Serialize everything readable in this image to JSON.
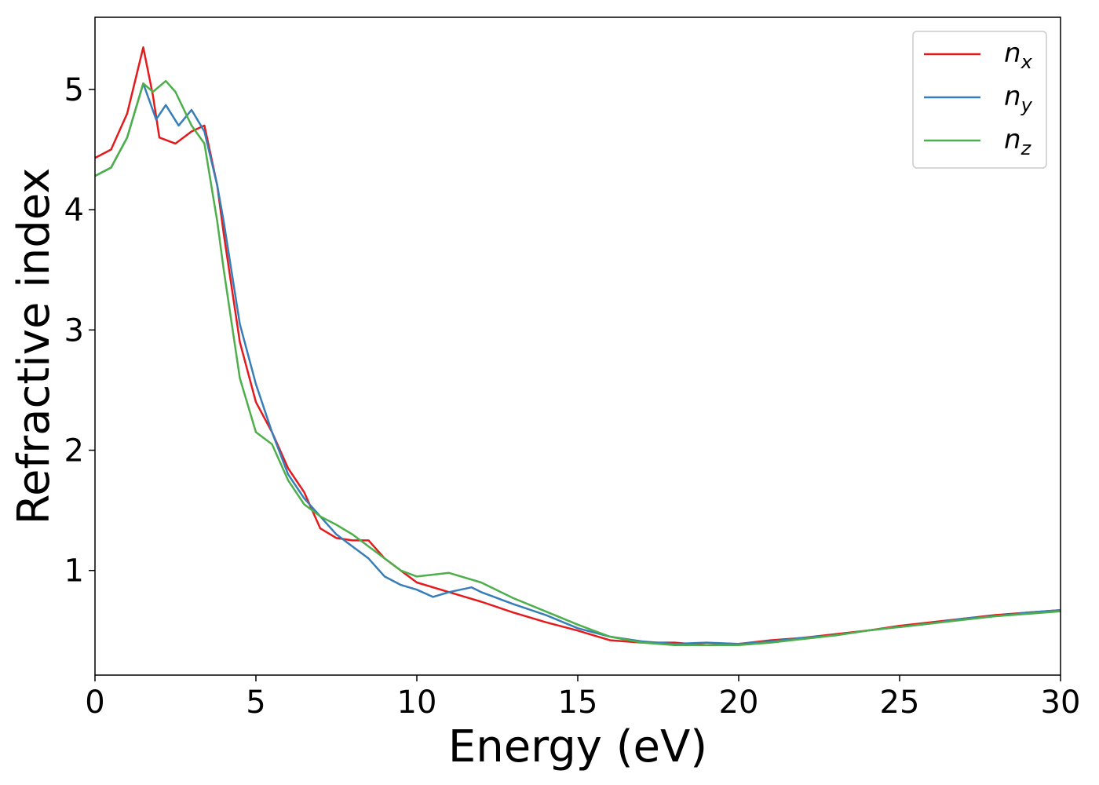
{
  "chart_data": {
    "type": "line",
    "xlabel": "Energy (eV)",
    "ylabel": "Refractive index",
    "xlim": [
      0,
      30
    ],
    "ylim": [
      0.13,
      5.6
    ],
    "xticks": [
      0,
      5,
      10,
      15,
      20,
      25,
      30
    ],
    "yticks": [
      1,
      2,
      3,
      4,
      5
    ],
    "grid": false,
    "legend": "upper right",
    "series": [
      {
        "name": [
          "n",
          "x"
        ],
        "color": "#e41a1c",
        "x": [
          0,
          0.5,
          1.0,
          1.5,
          1.8,
          2.0,
          2.5,
          3.0,
          3.4,
          3.8,
          4.0,
          4.5,
          5.0,
          5.5,
          6.0,
          6.5,
          7.0,
          7.5,
          8.0,
          8.5,
          9.0,
          9.5,
          10,
          11,
          12,
          13,
          14,
          15,
          16,
          17,
          18,
          19,
          20,
          21,
          22,
          23,
          24,
          25,
          26,
          27,
          28,
          29,
          30
        ],
        "values": [
          4.43,
          4.5,
          4.8,
          5.35,
          4.95,
          4.6,
          4.55,
          4.65,
          4.7,
          4.2,
          3.8,
          2.9,
          2.4,
          2.15,
          1.85,
          1.65,
          1.35,
          1.27,
          1.25,
          1.25,
          1.1,
          1.0,
          0.9,
          0.82,
          0.74,
          0.65,
          0.57,
          0.5,
          0.42,
          0.4,
          0.4,
          0.38,
          0.39,
          0.42,
          0.44,
          0.47,
          0.5,
          0.54,
          0.57,
          0.6,
          0.63,
          0.65,
          0.67
        ]
      },
      {
        "name": [
          "n",
          "y"
        ],
        "color": "#377eb8",
        "x": [
          0,
          0.5,
          1.0,
          1.5,
          1.9,
          2.2,
          2.6,
          3.0,
          3.4,
          3.8,
          4.0,
          4.5,
          5.0,
          5.5,
          6.0,
          6.5,
          7.0,
          7.5,
          8.0,
          8.5,
          9.0,
          9.5,
          10,
          10.5,
          11,
          11.7,
          12,
          13,
          14,
          15,
          16,
          17,
          18,
          19,
          20,
          21,
          22,
          23,
          24,
          25,
          26,
          27,
          28,
          29,
          30
        ],
        "values": [
          4.28,
          4.35,
          4.6,
          5.05,
          4.75,
          4.87,
          4.7,
          4.83,
          4.65,
          4.2,
          3.9,
          3.05,
          2.55,
          2.15,
          1.8,
          1.6,
          1.45,
          1.3,
          1.2,
          1.1,
          0.95,
          0.88,
          0.84,
          0.78,
          0.82,
          0.86,
          0.82,
          0.72,
          0.63,
          0.52,
          0.45,
          0.41,
          0.39,
          0.4,
          0.39,
          0.41,
          0.44,
          0.46,
          0.5,
          0.53,
          0.56,
          0.6,
          0.62,
          0.65,
          0.67
        ]
      },
      {
        "name": [
          "n",
          "z"
        ],
        "color": "#4daf4a",
        "x": [
          0,
          0.5,
          1.0,
          1.5,
          1.8,
          2.2,
          2.5,
          3.0,
          3.4,
          3.8,
          4.0,
          4.5,
          5.0,
          5.5,
          6.0,
          6.5,
          7.0,
          7.5,
          8.0,
          8.5,
          9.0,
          9.5,
          10,
          11,
          12,
          13,
          14,
          15,
          16,
          17,
          18,
          19,
          20,
          21,
          22,
          23,
          24,
          25,
          26,
          27,
          28,
          29,
          30
        ],
        "values": [
          4.28,
          4.35,
          4.6,
          5.05,
          4.98,
          5.07,
          4.98,
          4.7,
          4.55,
          3.9,
          3.5,
          2.6,
          2.15,
          2.05,
          1.75,
          1.55,
          1.45,
          1.38,
          1.3,
          1.2,
          1.1,
          1.0,
          0.95,
          0.98,
          0.9,
          0.77,
          0.66,
          0.55,
          0.45,
          0.4,
          0.38,
          0.38,
          0.38,
          0.4,
          0.43,
          0.46,
          0.5,
          0.53,
          0.56,
          0.59,
          0.62,
          0.64,
          0.66
        ]
      }
    ]
  }
}
